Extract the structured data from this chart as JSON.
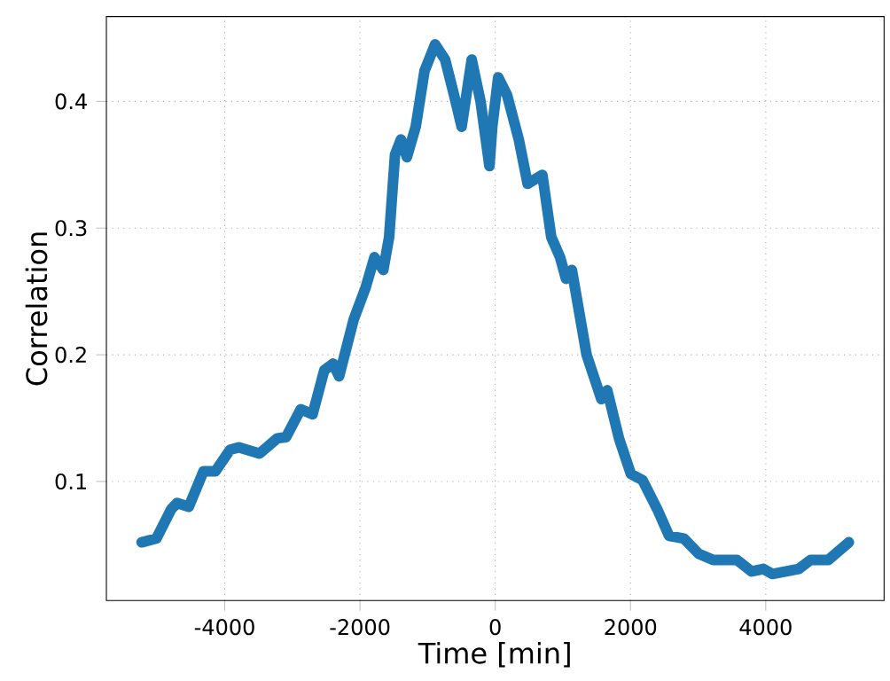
{
  "chart_data": {
    "type": "line",
    "xlabel": "Time [min]",
    "ylabel": "Correlation",
    "color": "#1f77b4",
    "grid": true,
    "line_style": "solid",
    "xlim": [
      -5750,
      5750
    ],
    "ylim": [
      0.006,
      0.467
    ],
    "xticks": [
      -4000,
      -2000,
      0,
      2000,
      4000
    ],
    "yticks": [
      0.1,
      0.2,
      0.3,
      0.4
    ],
    "x": [
      -5229,
      -5010,
      -4793,
      -4706,
      -4532,
      -4314,
      -4139,
      -3922,
      -3791,
      -3486,
      -3224,
      -3093,
      -2876,
      -2701,
      -2527,
      -2397,
      -2309,
      -2092,
      -1917,
      -1786,
      -1655,
      -1569,
      -1482,
      -1394,
      -1307,
      -1176,
      -1046,
      -889,
      -741,
      -609,
      -497,
      -348,
      -217,
      -86,
      -44,
      44,
      175,
      348,
      479,
      697,
      828,
      959,
      1046,
      1133,
      1351,
      1569,
      1656,
      1830,
      2005,
      2178,
      2397,
      2571,
      2789,
      3007,
      3224,
      3574,
      3791,
      3966,
      4096,
      4488,
      4662,
      4923,
      5229
    ],
    "values": [
      0.052,
      0.055,
      0.078,
      0.083,
      0.08,
      0.108,
      0.108,
      0.125,
      0.127,
      0.122,
      0.134,
      0.135,
      0.157,
      0.153,
      0.188,
      0.193,
      0.183,
      0.228,
      0.253,
      0.277,
      0.267,
      0.293,
      0.358,
      0.37,
      0.356,
      0.38,
      0.424,
      0.445,
      0.433,
      0.405,
      0.38,
      0.433,
      0.4,
      0.349,
      0.38,
      0.419,
      0.405,
      0.37,
      0.335,
      0.342,
      0.293,
      0.277,
      0.26,
      0.267,
      0.2,
      0.165,
      0.172,
      0.134,
      0.106,
      0.101,
      0.078,
      0.057,
      0.055,
      0.043,
      0.038,
      0.038,
      0.029,
      0.031,
      0.027,
      0.031,
      0.038,
      0.038,
      0.052
    ]
  }
}
